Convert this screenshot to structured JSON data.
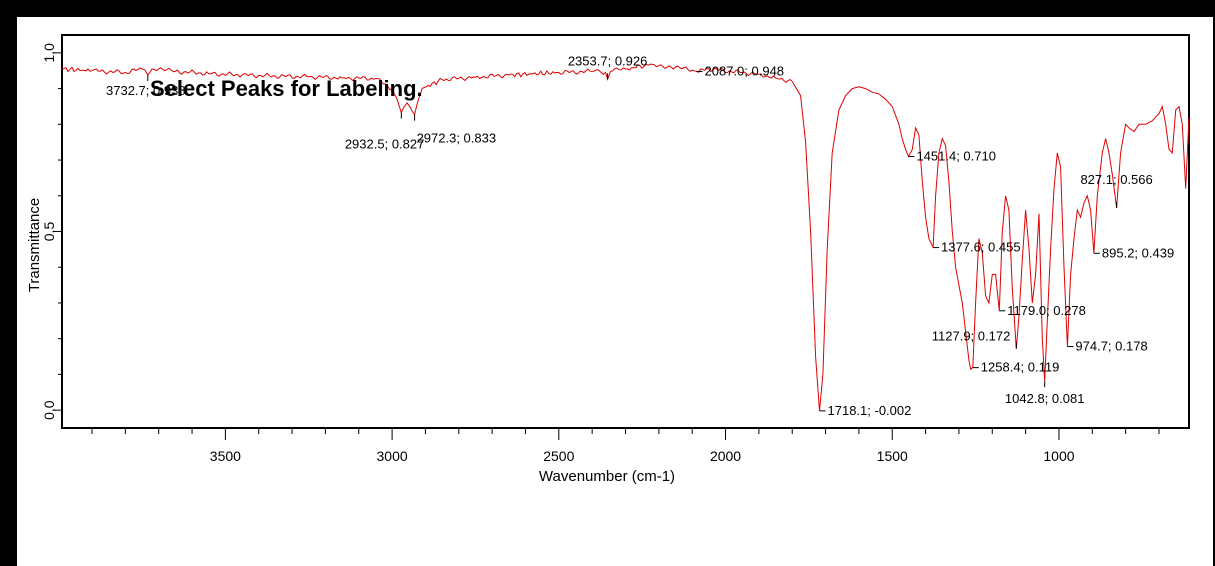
{
  "colors": {
    "spectrum": "#e00000",
    "frame": "#000000",
    "background": "#ffffff"
  },
  "overlay_text": "Select Peaks for Labeling.",
  "chart_data": {
    "type": "line",
    "title": "",
    "xlabel": "Wavenumber (cm-1)",
    "ylabel": "Transmittance",
    "xlim": [
      3990,
      610
    ],
    "ylim": [
      -0.05,
      1.05
    ],
    "x_reversed": true,
    "grid": false,
    "x_ticks": [
      3500,
      3000,
      2500,
      2000,
      1500,
      1000
    ],
    "y_ticks": [
      0.0,
      0.5,
      1.0
    ],
    "x_tick_labels": [
      "3500",
      "3000",
      "2500",
      "2000",
      "1500",
      "1000"
    ],
    "y_tick_labels": [
      "0,0",
      "0,5",
      "1,0"
    ],
    "series": [
      {
        "color": "#e00000",
        "x": [
          3990,
          3900,
          3800,
          3750,
          3732.7,
          3720,
          3650,
          3550,
          3450,
          3350,
          3250,
          3150,
          3050,
          3000,
          2972.3,
          2955,
          2932.5,
          2910,
          2850,
          2750,
          2650,
          2500,
          2400,
          2360,
          2353.7,
          2345,
          2300,
          2220,
          2150,
          2087,
          2050,
          1950,
          1900,
          1850,
          1800,
          1775,
          1760,
          1745,
          1730,
          1718.1,
          1708,
          1695,
          1680,
          1660,
          1640,
          1620,
          1600,
          1580,
          1560,
          1540,
          1520,
          1500,
          1480,
          1470,
          1460,
          1451.4,
          1440,
          1430,
          1420,
          1410,
          1400,
          1390,
          1377.6,
          1370,
          1360,
          1350,
          1340,
          1330,
          1320,
          1310,
          1300,
          1290,
          1280,
          1270,
          1265,
          1258.4,
          1250,
          1240,
          1230,
          1220,
          1210,
          1200,
          1190,
          1179.0,
          1170,
          1160,
          1150,
          1140,
          1127.9,
          1120,
          1110,
          1100,
          1090,
          1080,
          1070,
          1060,
          1050,
          1042.8,
          1035,
          1025,
          1015,
          1005,
          995,
          985,
          974.7,
          965,
          955,
          945,
          935,
          925,
          915,
          905,
          895.2,
          885,
          870,
          860,
          850,
          840,
          827.1,
          815,
          800,
          790,
          775,
          760,
          740,
          720,
          700,
          690,
          680,
          670,
          660,
          650,
          640,
          630,
          620,
          610
        ],
        "y": [
          0.955,
          0.95,
          0.945,
          0.955,
          0.938,
          0.955,
          0.948,
          0.942,
          0.938,
          0.935,
          0.933,
          0.93,
          0.928,
          0.9,
          0.833,
          0.86,
          0.827,
          0.9,
          0.925,
          0.932,
          0.938,
          0.945,
          0.948,
          0.945,
          0.926,
          0.948,
          0.955,
          0.968,
          0.96,
          0.948,
          0.955,
          0.945,
          0.94,
          0.93,
          0.92,
          0.88,
          0.75,
          0.5,
          0.15,
          -0.002,
          0.1,
          0.45,
          0.72,
          0.84,
          0.88,
          0.9,
          0.905,
          0.9,
          0.89,
          0.885,
          0.87,
          0.85,
          0.8,
          0.76,
          0.73,
          0.71,
          0.73,
          0.79,
          0.77,
          0.64,
          0.54,
          0.48,
          0.455,
          0.6,
          0.72,
          0.76,
          0.74,
          0.64,
          0.5,
          0.4,
          0.35,
          0.3,
          0.22,
          0.14,
          0.115,
          0.119,
          0.3,
          0.48,
          0.44,
          0.32,
          0.3,
          0.38,
          0.38,
          0.278,
          0.5,
          0.6,
          0.56,
          0.34,
          0.172,
          0.26,
          0.42,
          0.56,
          0.45,
          0.3,
          0.38,
          0.55,
          0.2,
          0.081,
          0.25,
          0.45,
          0.62,
          0.72,
          0.68,
          0.4,
          0.178,
          0.38,
          0.48,
          0.56,
          0.54,
          0.58,
          0.6,
          0.56,
          0.439,
          0.6,
          0.72,
          0.76,
          0.72,
          0.66,
          0.566,
          0.72,
          0.8,
          0.79,
          0.78,
          0.8,
          0.8,
          0.81,
          0.83,
          0.85,
          0.8,
          0.73,
          0.72,
          0.84,
          0.85,
          0.8,
          0.62,
          0.82
        ]
      }
    ],
    "peak_labels": [
      "3732.7; 0.938",
      "2932.5; 0.827",
      "2972.3; 0.833",
      "2353.7; 0.926",
      "2087.0; 0.948",
      "1718.1; -0.002",
      "1451.4; 0.710",
      "1377.6; 0.455",
      "1258.4; 0.119",
      "1179.0; 0.278",
      "1127.9; 0.172",
      "1042.8; 0.081",
      "974.7; 0.178",
      "895.2; 0.439",
      "827.1; 0.566"
    ]
  }
}
